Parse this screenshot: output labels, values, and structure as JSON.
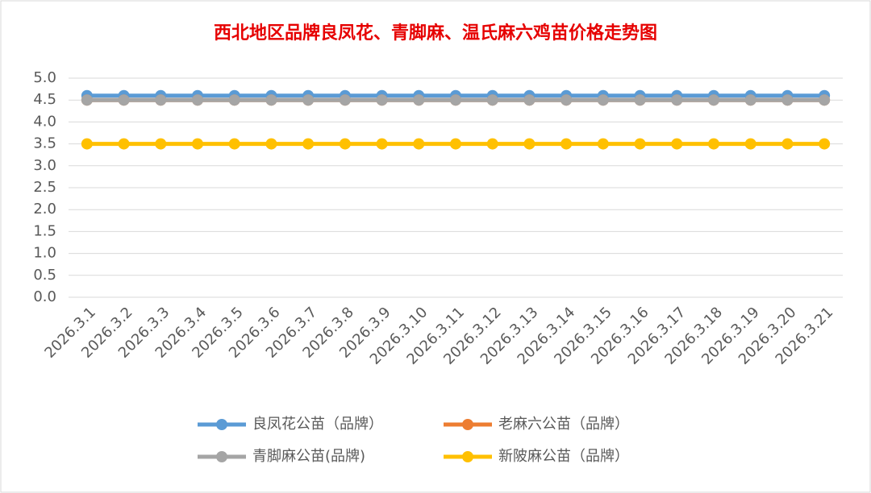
{
  "chart_data": {
    "type": "line",
    "title": "西北地区品牌良凤花、青脚麻、温氏麻六鸡苗价格走势图",
    "categories": [
      "2026.3.1",
      "2026.3.2",
      "2026.3.3",
      "2026.3.4",
      "2026.3.5",
      "2026.3.6",
      "2026.3.7",
      "2026.3.8",
      "2026.3.9",
      "2026.3.10",
      "2026.3.11",
      "2026.3.12",
      "2026.3.13",
      "2026.3.14",
      "2026.3.15",
      "2026.3.16",
      "2026.3.17",
      "2026.3.18",
      "2026.3.19",
      "2026.3.20",
      "2026.3.21"
    ],
    "series": [
      {
        "name": "良凤花公苗（品牌）",
        "color": "#5b9bd5",
        "values": [
          4.6,
          4.6,
          4.6,
          4.6,
          4.6,
          4.6,
          4.6,
          4.6,
          4.6,
          4.6,
          4.6,
          4.6,
          4.6,
          4.6,
          4.6,
          4.6,
          4.6,
          4.6,
          4.6,
          4.6,
          4.6
        ]
      },
      {
        "name": "老麻六公苗（品牌）",
        "color": "#ed7d31",
        "values": [
          4.5,
          4.5,
          4.5,
          4.5,
          4.5,
          4.5,
          4.5,
          4.5,
          4.5,
          4.5,
          4.5,
          4.5,
          4.5,
          4.5,
          4.5,
          4.5,
          4.5,
          4.5,
          4.5,
          4.5,
          4.5
        ]
      },
      {
        "name": "青脚麻公苗(品牌)",
        "color": "#a5a5a5",
        "values": [
          4.5,
          4.5,
          4.5,
          4.5,
          4.5,
          4.5,
          4.5,
          4.5,
          4.5,
          4.5,
          4.5,
          4.5,
          4.5,
          4.5,
          4.5,
          4.5,
          4.5,
          4.5,
          4.5,
          4.5,
          4.5
        ]
      },
      {
        "name": "新陂麻公苗（品牌）",
        "color": "#ffc000",
        "values": [
          3.5,
          3.5,
          3.5,
          3.5,
          3.5,
          3.5,
          3.5,
          3.5,
          3.5,
          3.5,
          3.5,
          3.5,
          3.5,
          3.5,
          3.5,
          3.5,
          3.5,
          3.5,
          3.5,
          3.5,
          3.5
        ]
      }
    ],
    "ylim": [
      0,
      5
    ],
    "yticks": [
      {
        "value": 0,
        "label": "0.0"
      },
      0.5,
      {
        "value": 1,
        "label": "1.0"
      },
      1.5,
      {
        "value": 2,
        "label": "2.0"
      },
      2.5,
      {
        "value": 3,
        "label": "3.0"
      },
      3.5,
      {
        "value": 4,
        "label": "4.0"
      },
      4.5,
      {
        "value": 5,
        "label": "5.0"
      }
    ],
    "grid": true,
    "legend": "bottom"
  }
}
